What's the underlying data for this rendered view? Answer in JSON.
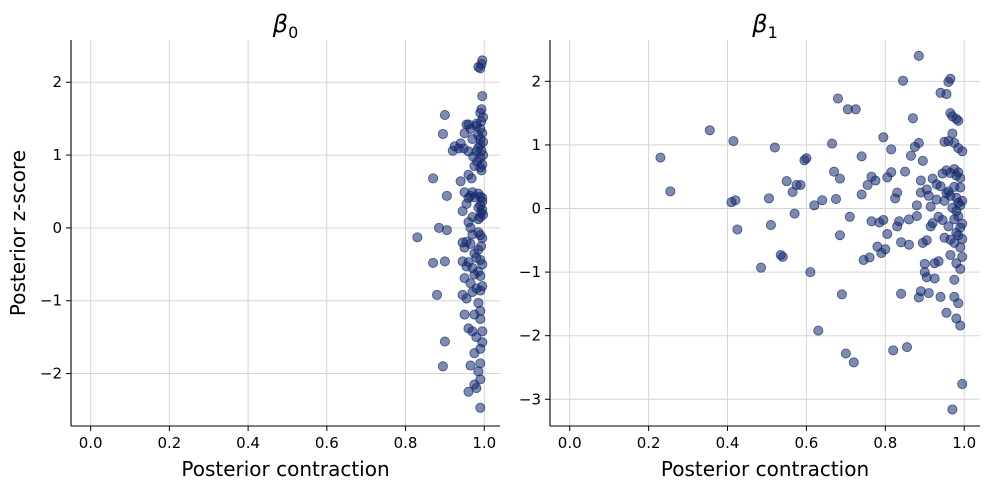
{
  "chart_data": [
    {
      "type": "scatter",
      "title": "β0",
      "title_base": "β",
      "title_sub": "0",
      "xlabel": "Posterior contraction",
      "ylabel": "Posterior z-score",
      "xlim": [
        -0.05,
        1.04
      ],
      "ylim": [
        -2.72,
        2.58
      ],
      "xticks": [
        0.0,
        0.2,
        0.4,
        0.6,
        0.8,
        1.0
      ],
      "xtick_labels": [
        "0.0",
        "0.2",
        "0.4",
        "0.6",
        "0.8",
        "1.0"
      ],
      "yticks": [
        -2,
        -1,
        0,
        1,
        2
      ],
      "ytick_labels": [
        "−2",
        "−1",
        "0",
        "1",
        "2"
      ],
      "grid": true,
      "point_color": "#142a6e",
      "points": [
        [
          0.995,
          2.3
        ],
        [
          0.993,
          2.25
        ],
        [
          0.99,
          2.19
        ],
        [
          0.985,
          2.21
        ],
        [
          0.995,
          1.81
        ],
        [
          0.993,
          1.63
        ],
        [
          0.99,
          1.58
        ],
        [
          0.997,
          1.52
        ],
        [
          0.992,
          1.46
        ],
        [
          0.98,
          1.43
        ],
        [
          0.98,
          1.4
        ],
        [
          0.99,
          1.36
        ],
        [
          0.995,
          1.3
        ],
        [
          0.985,
          1.27
        ],
        [
          0.99,
          1.22
        ],
        [
          0.997,
          1.18
        ],
        [
          0.99,
          1.14
        ],
        [
          0.985,
          1.1
        ],
        [
          0.993,
          1.06
        ],
        [
          0.98,
          1.05
        ],
        [
          0.997,
          1.0
        ],
        [
          0.99,
          0.96
        ],
        [
          0.982,
          0.91
        ],
        [
          0.995,
          0.87
        ],
        [
          0.99,
          0.83
        ],
        [
          0.993,
          0.79
        ],
        [
          0.96,
          1.42
        ],
        [
          0.955,
          1.42
        ],
        [
          0.965,
          1.36
        ],
        [
          0.95,
          1.3
        ],
        [
          0.97,
          1.22
        ],
        [
          0.94,
          1.16
        ],
        [
          0.948,
          1.09
        ],
        [
          0.96,
          1.05
        ],
        [
          0.935,
          1.09
        ],
        [
          0.9,
          1.55
        ],
        [
          0.895,
          1.29
        ],
        [
          0.92,
          1.06
        ],
        [
          0.925,
          1.12
        ],
        [
          0.972,
          0.98
        ],
        [
          0.87,
          0.68
        ],
        [
          0.96,
          0.73
        ],
        [
          0.94,
          0.64
        ],
        [
          0.975,
          0.85
        ],
        [
          0.968,
          0.68
        ],
        [
          0.95,
          0.49
        ],
        [
          0.965,
          0.44
        ],
        [
          0.97,
          0.49
        ],
        [
          0.985,
          0.47
        ],
        [
          0.99,
          0.43
        ],
        [
          0.995,
          0.41
        ],
        [
          0.975,
          0.42
        ],
        [
          0.96,
          0.41
        ],
        [
          0.955,
          0.33
        ],
        [
          0.995,
          0.36
        ],
        [
          0.99,
          0.31
        ],
        [
          0.985,
          0.28
        ],
        [
          0.995,
          0.25
        ],
        [
          0.992,
          0.21
        ],
        [
          0.997,
          0.18
        ],
        [
          0.99,
          0.15
        ],
        [
          0.985,
          0.12
        ],
        [
          0.945,
          0.23
        ],
        [
          0.905,
          0.44
        ],
        [
          0.97,
          0.15
        ],
        [
          0.96,
          0.08
        ],
        [
          0.965,
          0.0
        ],
        [
          0.83,
          -0.13
        ],
        [
          0.885,
          0.0
        ],
        [
          0.905,
          -0.03
        ],
        [
          0.87,
          -0.48
        ],
        [
          0.9,
          -0.46
        ],
        [
          0.985,
          -0.06
        ],
        [
          0.99,
          -0.1
        ],
        [
          0.995,
          -0.14
        ],
        [
          0.97,
          -0.09
        ],
        [
          0.955,
          -0.19
        ],
        [
          0.965,
          -0.22
        ],
        [
          0.95,
          -0.27
        ],
        [
          0.945,
          -0.2
        ],
        [
          0.975,
          -0.35
        ],
        [
          0.985,
          -0.3
        ],
        [
          0.992,
          -0.25
        ],
        [
          0.98,
          -0.41
        ],
        [
          0.99,
          -0.44
        ],
        [
          0.995,
          -0.5
        ],
        [
          0.96,
          -0.47
        ],
        [
          0.955,
          -0.53
        ],
        [
          0.945,
          -0.46
        ],
        [
          0.97,
          -0.55
        ],
        [
          0.985,
          -0.6
        ],
        [
          0.99,
          -0.66
        ],
        [
          0.975,
          -0.64
        ],
        [
          0.95,
          -0.69
        ],
        [
          0.965,
          -0.76
        ],
        [
          0.98,
          -0.83
        ],
        [
          0.99,
          -0.86
        ],
        [
          0.995,
          -0.8
        ],
        [
          0.97,
          -0.88
        ],
        [
          0.945,
          -0.92
        ],
        [
          0.88,
          -0.92
        ],
        [
          0.955,
          -0.97
        ],
        [
          0.985,
          -1.03
        ],
        [
          0.99,
          -1.14
        ],
        [
          0.975,
          -1.19
        ],
        [
          0.99,
          -1.25
        ],
        [
          0.95,
          -1.19
        ],
        [
          0.995,
          -1.42
        ],
        [
          0.96,
          -1.38
        ],
        [
          0.97,
          -1.42
        ],
        [
          0.98,
          -1.5
        ],
        [
          0.995,
          -1.57
        ],
        [
          0.99,
          -1.66
        ],
        [
          0.975,
          -1.72
        ],
        [
          0.9,
          -1.56
        ],
        [
          0.895,
          -1.9
        ],
        [
          0.965,
          -1.89
        ],
        [
          0.99,
          -1.86
        ],
        [
          0.985,
          -1.97
        ],
        [
          0.99,
          -2.08
        ],
        [
          0.975,
          -2.15
        ],
        [
          0.98,
          -2.2
        ],
        [
          0.96,
          -2.25
        ],
        [
          0.99,
          -2.47
        ]
      ]
    },
    {
      "type": "scatter",
      "title": "β1",
      "title_base": "β",
      "title_sub": "1",
      "xlabel": "Posterior contraction",
      "ylabel": "",
      "xlim": [
        -0.05,
        1.04
      ],
      "ylim": [
        -3.42,
        2.65
      ],
      "xticks": [
        0.0,
        0.2,
        0.4,
        0.6,
        0.8,
        1.0
      ],
      "xtick_labels": [
        "0.0",
        "0.2",
        "0.4",
        "0.6",
        "0.8",
        "1.0"
      ],
      "yticks": [
        -3,
        -2,
        -1,
        0,
        1,
        2
      ],
      "ytick_labels": [
        "−3",
        "−2",
        "−1",
        "0",
        "1",
        "2"
      ],
      "grid": true,
      "point_color": "#142a6e",
      "points": [
        [
          0.23,
          0.8
        ],
        [
          0.255,
          0.27
        ],
        [
          0.355,
          1.23
        ],
        [
          0.41,
          0.1
        ],
        [
          0.415,
          1.06
        ],
        [
          0.42,
          0.13
        ],
        [
          0.425,
          -0.33
        ],
        [
          0.485,
          -0.93
        ],
        [
          0.505,
          0.16
        ],
        [
          0.51,
          -0.26
        ],
        [
          0.52,
          0.96
        ],
        [
          0.535,
          -0.73
        ],
        [
          0.54,
          -0.76
        ],
        [
          0.55,
          0.43
        ],
        [
          0.565,
          0.26
        ],
        [
          0.57,
          -0.08
        ],
        [
          0.575,
          0.37
        ],
        [
          0.585,
          0.37
        ],
        [
          0.595,
          0.76
        ],
        [
          0.6,
          0.79
        ],
        [
          0.61,
          -1.0
        ],
        [
          0.62,
          0.05
        ],
        [
          0.63,
          -1.92
        ],
        [
          0.64,
          0.13
        ],
        [
          0.665,
          1.02
        ],
        [
          0.67,
          0.58
        ],
        [
          0.675,
          0.15
        ],
        [
          0.68,
          1.73
        ],
        [
          0.685,
          0.47
        ],
        [
          0.685,
          -0.42
        ],
        [
          0.69,
          -1.35
        ],
        [
          0.7,
          -2.28
        ],
        [
          0.705,
          1.56
        ],
        [
          0.71,
          -0.13
        ],
        [
          0.72,
          -2.42
        ],
        [
          0.725,
          1.56
        ],
        [
          0.74,
          0.82
        ],
        [
          0.74,
          0.22
        ],
        [
          0.745,
          -0.81
        ],
        [
          0.755,
          0.37
        ],
        [
          0.76,
          -0.77
        ],
        [
          0.765,
          0.5
        ],
        [
          0.765,
          -0.2
        ],
        [
          0.775,
          0.44
        ],
        [
          0.78,
          -0.6
        ],
        [
          0.785,
          -0.22
        ],
        [
          0.79,
          -0.7
        ],
        [
          0.795,
          1.12
        ],
        [
          0.795,
          -0.18
        ],
        [
          0.8,
          -0.64
        ],
        [
          0.805,
          0.49
        ],
        [
          0.805,
          -0.4
        ],
        [
          0.815,
          0.93
        ],
        [
          0.815,
          0.57
        ],
        [
          0.82,
          -2.23
        ],
        [
          0.825,
          0.16
        ],
        [
          0.83,
          0.25
        ],
        [
          0.83,
          -0.28
        ],
        [
          0.835,
          -0.2
        ],
        [
          0.84,
          -0.53
        ],
        [
          0.84,
          -1.34
        ],
        [
          0.845,
          2.01
        ],
        [
          0.85,
          0.58
        ],
        [
          0.855,
          -2.18
        ],
        [
          0.86,
          -0.57
        ],
        [
          0.86,
          -0.17
        ],
        [
          0.865,
          0.83
        ],
        [
          0.87,
          1.42
        ],
        [
          0.875,
          0.97
        ],
        [
          0.88,
          0.05
        ],
        [
          0.88,
          -0.12
        ],
        [
          0.885,
          2.4
        ],
        [
          0.885,
          1.03
        ],
        [
          0.885,
          -1.4
        ],
        [
          0.89,
          0.44
        ],
        [
          0.89,
          0.25
        ],
        [
          0.89,
          -1.3
        ],
        [
          0.895,
          0.75
        ],
        [
          0.895,
          -0.54
        ],
        [
          0.9,
          -0.87
        ],
        [
          0.9,
          -1.0
        ],
        [
          0.905,
          0.3
        ],
        [
          0.905,
          -0.5
        ],
        [
          0.905,
          -1.08
        ],
        [
          0.91,
          0.2
        ],
        [
          0.91,
          -1.33
        ],
        [
          0.915,
          0.03
        ],
        [
          0.915,
          -0.28
        ],
        [
          0.92,
          0.47
        ],
        [
          0.92,
          -0.23
        ],
        [
          0.925,
          -0.86
        ],
        [
          0.925,
          -1.1
        ],
        [
          0.93,
          0.38
        ],
        [
          0.93,
          0.14
        ],
        [
          0.935,
          -0.13
        ],
        [
          0.935,
          -0.83
        ],
        [
          0.94,
          1.82
        ],
        [
          0.94,
          0.35
        ],
        [
          0.94,
          -1.39
        ],
        [
          0.945,
          0.55
        ],
        [
          0.945,
          -0.18
        ],
        [
          0.95,
          1.05
        ],
        [
          0.95,
          0.12
        ],
        [
          0.95,
          -0.46
        ],
        [
          0.955,
          1.8
        ],
        [
          0.955,
          0.6
        ],
        [
          0.955,
          0.24
        ],
        [
          0.955,
          -1.64
        ],
        [
          0.96,
          1.99
        ],
        [
          0.96,
          1.06
        ],
        [
          0.96,
          0.27
        ],
        [
          0.96,
          -0.28
        ],
        [
          0.965,
          2.04
        ],
        [
          0.965,
          1.5
        ],
        [
          0.965,
          0.56
        ],
        [
          0.965,
          0.2
        ],
        [
          0.965,
          -0.49
        ],
        [
          0.965,
          -0.73
        ],
        [
          0.97,
          1.18
        ],
        [
          0.97,
          1.45
        ],
        [
          0.97,
          0.01
        ],
        [
          0.97,
          -3.16
        ],
        [
          0.975,
          1.03
        ],
        [
          0.975,
          0.62
        ],
        [
          0.975,
          0.34
        ],
        [
          0.975,
          -0.17
        ],
        [
          0.975,
          -0.54
        ],
        [
          0.975,
          -1.12
        ],
        [
          0.975,
          -1.39
        ],
        [
          0.98,
          1.41
        ],
        [
          0.98,
          0.52
        ],
        [
          0.98,
          0.17
        ],
        [
          0.98,
          -0.04
        ],
        [
          0.98,
          -0.38
        ],
        [
          0.98,
          -0.86
        ],
        [
          0.98,
          -1.73
        ],
        [
          0.985,
          1.38
        ],
        [
          0.985,
          0.95
        ],
        [
          0.985,
          0.57
        ],
        [
          0.985,
          0.09
        ],
        [
          0.985,
          -0.12
        ],
        [
          0.985,
          -0.42
        ],
        [
          0.985,
          -1.49
        ],
        [
          0.99,
          0.48
        ],
        [
          0.99,
          0.33
        ],
        [
          0.99,
          0.05
        ],
        [
          0.99,
          -0.3
        ],
        [
          0.99,
          -0.61
        ],
        [
          0.99,
          -0.95
        ],
        [
          0.99,
          -1.84
        ],
        [
          0.995,
          0.12
        ],
        [
          0.995,
          -0.24
        ],
        [
          0.995,
          -0.48
        ],
        [
          0.995,
          -0.76
        ],
        [
          0.995,
          -2.76
        ],
        [
          0.995,
          0.9
        ]
      ]
    }
  ]
}
